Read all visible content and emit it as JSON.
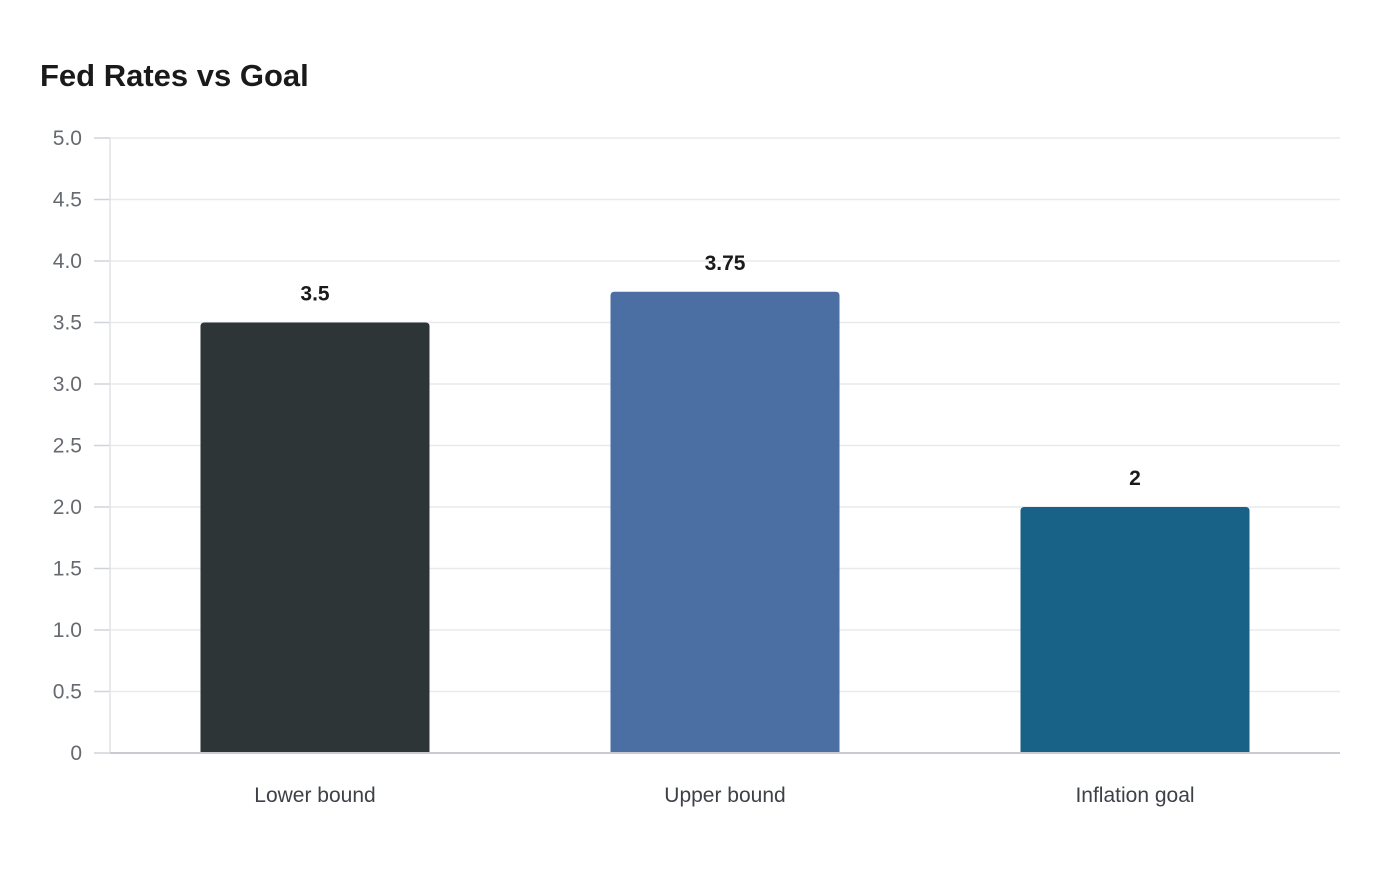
{
  "chart_data": {
    "type": "bar",
    "title": "Fed Rates vs Goal",
    "xlabel": "",
    "ylabel": "",
    "categories": [
      "Lower bound",
      "Upper bound",
      "Inflation goal"
    ],
    "values": [
      3.5,
      3.75,
      2
    ],
    "value_labels": [
      "3.5",
      "3.75",
      "2"
    ],
    "colors": [
      "#2e3536",
      "#4b6ea3",
      "#186187"
    ],
    "ylim": [
      0,
      5
    ],
    "yticks": [
      0,
      0.5,
      1,
      1.5,
      2,
      2.5,
      3,
      3.5,
      4,
      4.5,
      5
    ],
    "ytick_labels": [
      "0",
      "0.5",
      "1.0",
      "1.5",
      "2.0",
      "2.5",
      "3.0",
      "3.5",
      "4.0",
      "4.5",
      "5.0"
    ],
    "grid": true,
    "legend": false
  }
}
